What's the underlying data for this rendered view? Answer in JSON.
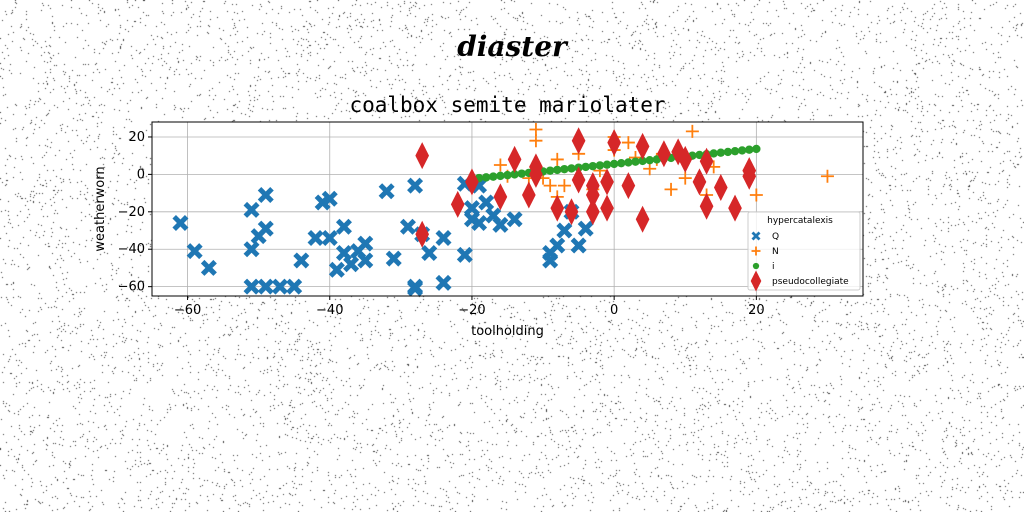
{
  "figure": {
    "suptitle": "diaster"
  },
  "chart_data": {
    "type": "scatter",
    "title": "coalbox semite mariolater",
    "xlabel": "toolholding",
    "ylabel": "weatherworn",
    "xlim": [
      -65,
      35
    ],
    "ylim": [
      -65,
      28
    ],
    "xticks": [
      -60,
      -40,
      -20,
      0,
      20
    ],
    "yticks": [
      -60,
      -40,
      -20,
      0,
      20
    ],
    "grid": true,
    "legend": {
      "title": "hypercatalexis",
      "placement": "lower-right"
    },
    "series": [
      {
        "name": "Q",
        "marker": "X",
        "color": "#1f77b4",
        "points": [
          [
            -61,
            -26
          ],
          [
            -59,
            -41
          ],
          [
            -57,
            -50
          ],
          [
            -51,
            -40
          ],
          [
            -51,
            -19
          ],
          [
            -50,
            -33
          ],
          [
            -49,
            -29
          ],
          [
            -49,
            -11
          ],
          [
            -51,
            -60
          ],
          [
            -49,
            -60
          ],
          [
            -47,
            -60
          ],
          [
            -45,
            -60
          ],
          [
            -44,
            -46
          ],
          [
            -42,
            -34
          ],
          [
            -40,
            -34
          ],
          [
            -41,
            -15
          ],
          [
            -40,
            -13
          ],
          [
            -39,
            -51
          ],
          [
            -38,
            -28
          ],
          [
            -38,
            -42
          ],
          [
            -37,
            -48
          ],
          [
            -36,
            -41
          ],
          [
            -35,
            -46
          ],
          [
            -35,
            -37
          ],
          [
            -32,
            -9
          ],
          [
            -31,
            -45
          ],
          [
            -29,
            -28
          ],
          [
            -28,
            -6
          ],
          [
            -28,
            -60
          ],
          [
            -28,
            -61
          ],
          [
            -27,
            -32
          ],
          [
            -24,
            -34
          ],
          [
            -24,
            -58
          ],
          [
            -21,
            -43
          ],
          [
            -21,
            -5
          ],
          [
            -20,
            -24
          ],
          [
            -20,
            -18
          ],
          [
            -19,
            -26
          ],
          [
            -19,
            -6
          ],
          [
            -18,
            -15
          ],
          [
            -17,
            -22
          ],
          [
            -16,
            -27
          ],
          [
            -14,
            -24
          ],
          [
            -9,
            -42
          ],
          [
            -9,
            -46
          ],
          [
            -8,
            -38
          ],
          [
            -7,
            -30
          ],
          [
            -6,
            -20
          ],
          [
            -5,
            -38
          ],
          [
            -4,
            -29
          ],
          [
            -26,
            -42
          ]
        ]
      },
      {
        "name": "N",
        "marker": "+",
        "color": "#ff7f0e",
        "points": [
          [
            -16,
            5
          ],
          [
            -15,
            -1
          ],
          [
            -12,
            -2
          ],
          [
            -11,
            24
          ],
          [
            -11,
            18
          ],
          [
            -10,
            -2
          ],
          [
            -9,
            -6
          ],
          [
            -8,
            -12
          ],
          [
            -8,
            8
          ],
          [
            -7,
            -6
          ],
          [
            -5,
            11
          ],
          [
            -3,
            -8
          ],
          [
            -2,
            2
          ],
          [
            0,
            20
          ],
          [
            0,
            13
          ],
          [
            2,
            17
          ],
          [
            3,
            9
          ],
          [
            5,
            3
          ],
          [
            6,
            8
          ],
          [
            8,
            -8
          ],
          [
            10,
            -2
          ],
          [
            11,
            23
          ],
          [
            13,
            -11
          ],
          [
            14,
            4
          ],
          [
            19,
            2
          ],
          [
            20,
            -11
          ],
          [
            30,
            -1
          ]
        ]
      },
      {
        "name": "i",
        "marker": "o",
        "color": "#2ca02c",
        "points": [
          [
            -20,
            -2.4
          ],
          [
            -19,
            -2.0
          ],
          [
            -18,
            -1.6
          ],
          [
            -17,
            -1.2
          ],
          [
            -16,
            -0.8
          ],
          [
            -15,
            -0.4
          ],
          [
            -14,
            0.0
          ],
          [
            -13,
            0.4
          ],
          [
            -12,
            0.8
          ],
          [
            -11,
            1.2
          ],
          [
            -10,
            1.6
          ],
          [
            -9,
            2.0
          ],
          [
            -8,
            2.4
          ],
          [
            -7,
            2.8
          ],
          [
            -6,
            3.2
          ],
          [
            -5,
            3.6
          ],
          [
            -4,
            4.0
          ],
          [
            -3,
            4.4
          ],
          [
            -2,
            4.8
          ],
          [
            -1,
            5.2
          ],
          [
            0,
            5.6
          ],
          [
            1,
            6.0
          ],
          [
            2,
            6.4
          ],
          [
            3,
            6.8
          ],
          [
            4,
            7.2
          ],
          [
            5,
            7.6
          ],
          [
            6,
            8.0
          ],
          [
            7,
            8.4
          ],
          [
            8,
            8.8
          ],
          [
            9,
            9.2
          ],
          [
            10,
            9.6
          ],
          [
            11,
            10.0
          ],
          [
            12,
            10.4
          ],
          [
            13,
            10.8
          ],
          [
            14,
            11.2
          ],
          [
            15,
            11.6
          ],
          [
            16,
            12.0
          ],
          [
            17,
            12.4
          ],
          [
            18,
            12.8
          ],
          [
            19,
            13.2
          ],
          [
            20,
            13.6
          ]
        ]
      },
      {
        "name": "pseudocollegiate",
        "marker": "d",
        "color": "#d62728",
        "points": [
          [
            -27,
            10
          ],
          [
            -27,
            -32
          ],
          [
            -22,
            -16
          ],
          [
            -20,
            -4
          ],
          [
            -16,
            -12
          ],
          [
            -14,
            8
          ],
          [
            -12,
            -11
          ],
          [
            -11,
            4
          ],
          [
            -11,
            0
          ],
          [
            -8,
            -18
          ],
          [
            -6,
            -20
          ],
          [
            -5,
            18
          ],
          [
            -5,
            -3
          ],
          [
            -3,
            -6
          ],
          [
            -3,
            -11
          ],
          [
            -3,
            -20
          ],
          [
            -1,
            -18
          ],
          [
            -1,
            -4
          ],
          [
            0,
            17
          ],
          [
            2,
            -6
          ],
          [
            4,
            -24
          ],
          [
            4,
            15
          ],
          [
            7,
            11
          ],
          [
            9,
            12
          ],
          [
            10,
            8
          ],
          [
            12,
            -4
          ],
          [
            13,
            -17
          ],
          [
            13,
            7
          ],
          [
            15,
            -7
          ],
          [
            17,
            -18
          ],
          [
            19,
            2
          ],
          [
            19,
            -1
          ]
        ]
      }
    ]
  }
}
